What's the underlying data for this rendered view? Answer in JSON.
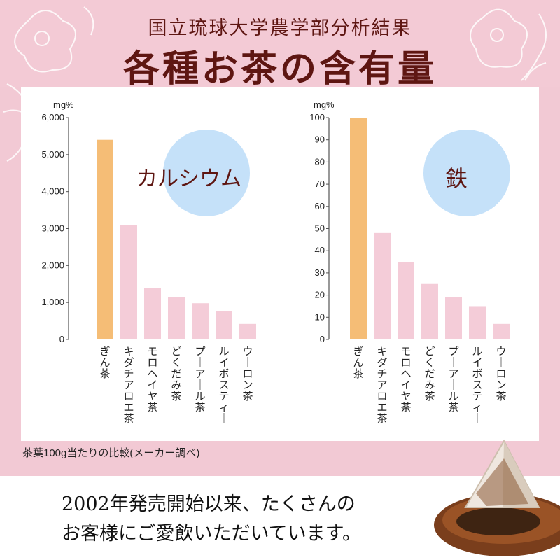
{
  "header": {
    "subtitle": "国立琉球大学農学部分析結果",
    "title": "各種お茶の含有量"
  },
  "note": "茶葉100g当たりの比較(メーカー調べ)",
  "footer": {
    "line1": "2002年発売開始以来、たくさんの",
    "line2": "お客様にご愛飲いただいています。"
  },
  "colors": {
    "highlight_bar": "#f5bd76",
    "other_bar": "#f4ccd8",
    "circle": "#c5e1f9",
    "title_text": "#5e1612"
  },
  "chart_data": [
    {
      "type": "bar",
      "badge": "カルシウム",
      "unit": "mg%",
      "ylim": [
        0,
        6000
      ],
      "ticks": [
        "0",
        "1,000",
        "2,000",
        "3,000",
        "4,000",
        "5,000",
        "6,000"
      ],
      "tick_values": [
        0,
        1000,
        2000,
        3000,
        4000,
        5000,
        6000
      ],
      "categories": [
        "ぎん茶",
        "キダチアロエ茶",
        "モロヘイヤ茶",
        "どくだみ茶",
        "プーアール茶",
        "ルイボスティー",
        "ウーロン茶"
      ],
      "values": [
        5400,
        3100,
        1400,
        1150,
        980,
        760,
        420
      ],
      "highlight_index": 0
    },
    {
      "type": "bar",
      "badge": "鉄",
      "unit": "mg%",
      "ylim": [
        0,
        100
      ],
      "ticks": [
        "0",
        "10",
        "20",
        "30",
        "40",
        "50",
        "60",
        "70",
        "80",
        "90",
        "100"
      ],
      "tick_values": [
        0,
        10,
        20,
        30,
        40,
        50,
        60,
        70,
        80,
        90,
        100
      ],
      "categories": [
        "ぎん茶",
        "キダチアロエ茶",
        "モロヘイヤ茶",
        "どくだみ茶",
        "プーアール茶",
        "ルイボスティー",
        "ウーロン茶"
      ],
      "values": [
        100,
        48,
        35,
        25,
        19,
        15,
        7
      ],
      "highlight_index": 0
    }
  ]
}
